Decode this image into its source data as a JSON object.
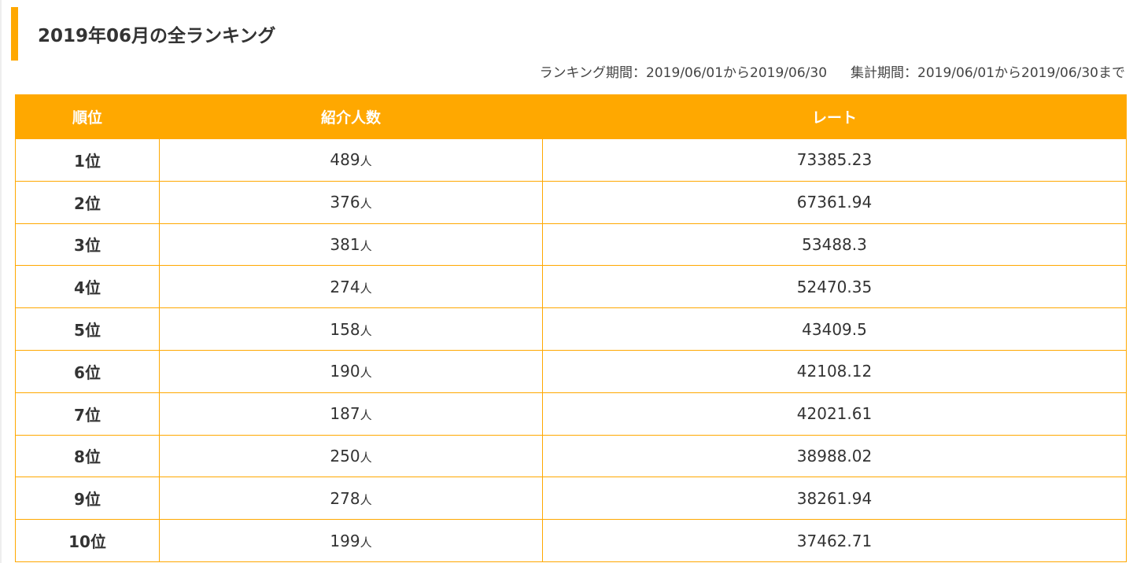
{
  "page": {
    "title": "2019年06月の全ランキング",
    "ranking_period": "ランキング期間：2019/06/01から2019/06/30",
    "aggregation_period": "集計期間：2019/06/01から2019/06/30まで"
  },
  "table": {
    "headers": [
      "順位",
      "紹介人数",
      "レート"
    ],
    "rows": [
      {
        "rank": "1位",
        "count": "489",
        "unit": "人",
        "rate": "73385.23"
      },
      {
        "rank": "2位",
        "count": "376",
        "unit": "人",
        "rate": "67361.94"
      },
      {
        "rank": "3位",
        "count": "381",
        "unit": "人",
        "rate": "53488.3"
      },
      {
        "rank": "4位",
        "count": "274",
        "unit": "人",
        "rate": "52470.35"
      },
      {
        "rank": "5位",
        "count": "158",
        "unit": "人",
        "rate": "43409.5"
      },
      {
        "rank": "6位",
        "count": "190",
        "unit": "人",
        "rate": "42108.12"
      },
      {
        "rank": "7位",
        "count": "187",
        "unit": "人",
        "rate": "42021.61"
      },
      {
        "rank": "8位",
        "count": "250",
        "unit": "人",
        "rate": "38988.02"
      },
      {
        "rank": "9位",
        "count": "278",
        "unit": "人",
        "rate": "38261.94"
      },
      {
        "rank": "10位",
        "count": "199",
        "unit": "人",
        "rate": "37462.71"
      }
    ]
  },
  "colors": {
    "accent": "#ffa800",
    "rank_text": "#f04e00"
  }
}
